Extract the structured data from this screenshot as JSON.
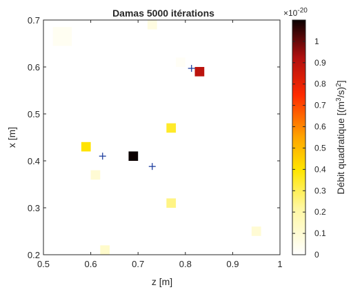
{
  "chart_data": {
    "type": "heatmap",
    "title": "Damas 5000 itérations",
    "xlabel": "z [m]",
    "ylabel": "x [m]",
    "xlim": [
      0.5,
      1.0
    ],
    "ylim": [
      0.2,
      0.7
    ],
    "xticks": [
      0.5,
      0.6,
      0.7,
      0.8,
      0.9,
      1.0
    ],
    "xtick_labels": [
      "0.5",
      "0.6",
      "0.7",
      "0.8",
      "0.9",
      "1"
    ],
    "yticks": [
      0.2,
      0.3,
      0.4,
      0.5,
      0.6,
      0.7
    ],
    "ytick_labels": [
      "0.2",
      "0.3",
      "0.4",
      "0.5",
      "0.6",
      "0.7"
    ],
    "grid": false,
    "colorbar": {
      "label_prefix": "Débit quadratique [(m",
      "label_sup1": "3",
      "label_mid": "/s)",
      "label_sup2": "2",
      "label_suffix": "]",
      "scale_base": "×10",
      "scale_exp": "-20",
      "range": [
        0,
        1.1
      ],
      "ticks": [
        0,
        0.1,
        0.2,
        0.3,
        0.4,
        0.5,
        0.6,
        0.7,
        0.8,
        0.9,
        1.0
      ],
      "tick_labels": [
        "0",
        "0.1",
        "0.2",
        "0.3",
        "0.4",
        "0.5",
        "0.6",
        "0.7",
        "0.8",
        "0.9",
        "1"
      ],
      "colormap": "hot-reversed"
    },
    "sources": [
      {
        "z": 0.54,
        "x": 0.665,
        "value": 0.03,
        "size": 0.04
      },
      {
        "z": 0.73,
        "x": 0.69,
        "value": 0.07,
        "size": 0.02
      },
      {
        "z": 0.79,
        "x": 0.61,
        "value": 0.02,
        "size": 0.02
      },
      {
        "z": 0.83,
        "x": 0.59,
        "value": 0.9,
        "size": 0.02
      },
      {
        "z": 0.77,
        "x": 0.47,
        "value": 0.35,
        "size": 0.02
      },
      {
        "z": 0.59,
        "x": 0.43,
        "value": 0.4,
        "size": 0.02
      },
      {
        "z": 0.69,
        "x": 0.41,
        "value": 1.1,
        "size": 0.02
      },
      {
        "z": 0.61,
        "x": 0.37,
        "value": 0.1,
        "size": 0.02
      },
      {
        "z": 0.77,
        "x": 0.31,
        "value": 0.25,
        "size": 0.02
      },
      {
        "z": 0.95,
        "x": 0.25,
        "value": 0.1,
        "size": 0.02
      },
      {
        "z": 0.63,
        "x": 0.21,
        "value": 0.12,
        "size": 0.02
      }
    ],
    "markers": [
      {
        "z": 0.813,
        "x": 0.597
      },
      {
        "z": 0.625,
        "x": 0.41
      },
      {
        "z": 0.73,
        "x": 0.388
      }
    ],
    "marker_color": "#1f3f9f"
  }
}
